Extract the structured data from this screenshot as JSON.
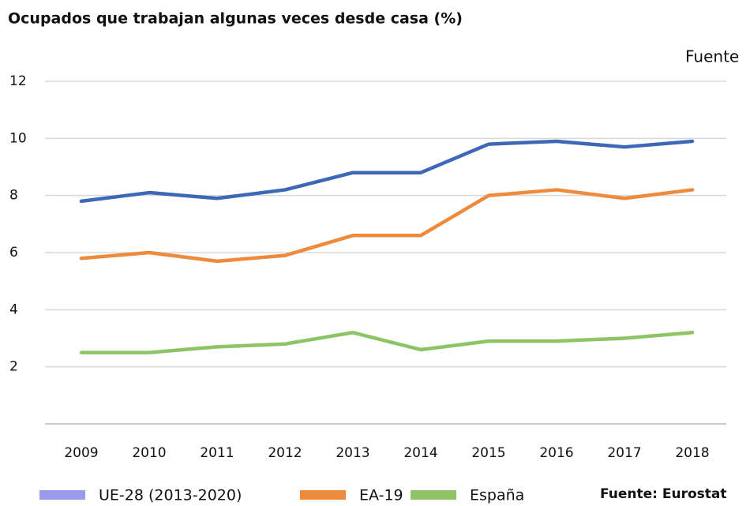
{
  "chart_data": {
    "type": "line",
    "title": "Ocupados que trabajan algunas veces desde casa (%)",
    "annotations": [
      "Fuente",
      "Fuente: Eurostat"
    ],
    "categories": [
      "2009",
      "2010",
      "2011",
      "2012",
      "2013",
      "2014",
      "2015",
      "2016",
      "2017",
      "2018"
    ],
    "series": [
      {
        "name": "UE-28 (2013-2020)",
        "color": "#3d68b8",
        "legend_color": "#9b9bee",
        "values": [
          7.8,
          8.1,
          7.9,
          8.2,
          8.8,
          8.8,
          9.8,
          9.9,
          9.7,
          9.9
        ]
      },
      {
        "name": "EA-19",
        "color": "#ee8a3c",
        "legend_color": "#ee8a3c",
        "values": [
          5.8,
          6.0,
          5.7,
          5.9,
          6.6,
          6.6,
          8.0,
          8.2,
          7.9,
          8.2
        ]
      },
      {
        "name": "España",
        "color": "#8cc466",
        "legend_color": "#8cc466",
        "values": [
          2.5,
          2.5,
          2.7,
          2.8,
          3.2,
          2.6,
          2.9,
          2.9,
          3.0,
          3.2
        ]
      }
    ],
    "ylim": [
      0,
      12
    ],
    "yticks": [
      2,
      4,
      6,
      8,
      10,
      12
    ],
    "grid": true,
    "legend": "bottom"
  }
}
